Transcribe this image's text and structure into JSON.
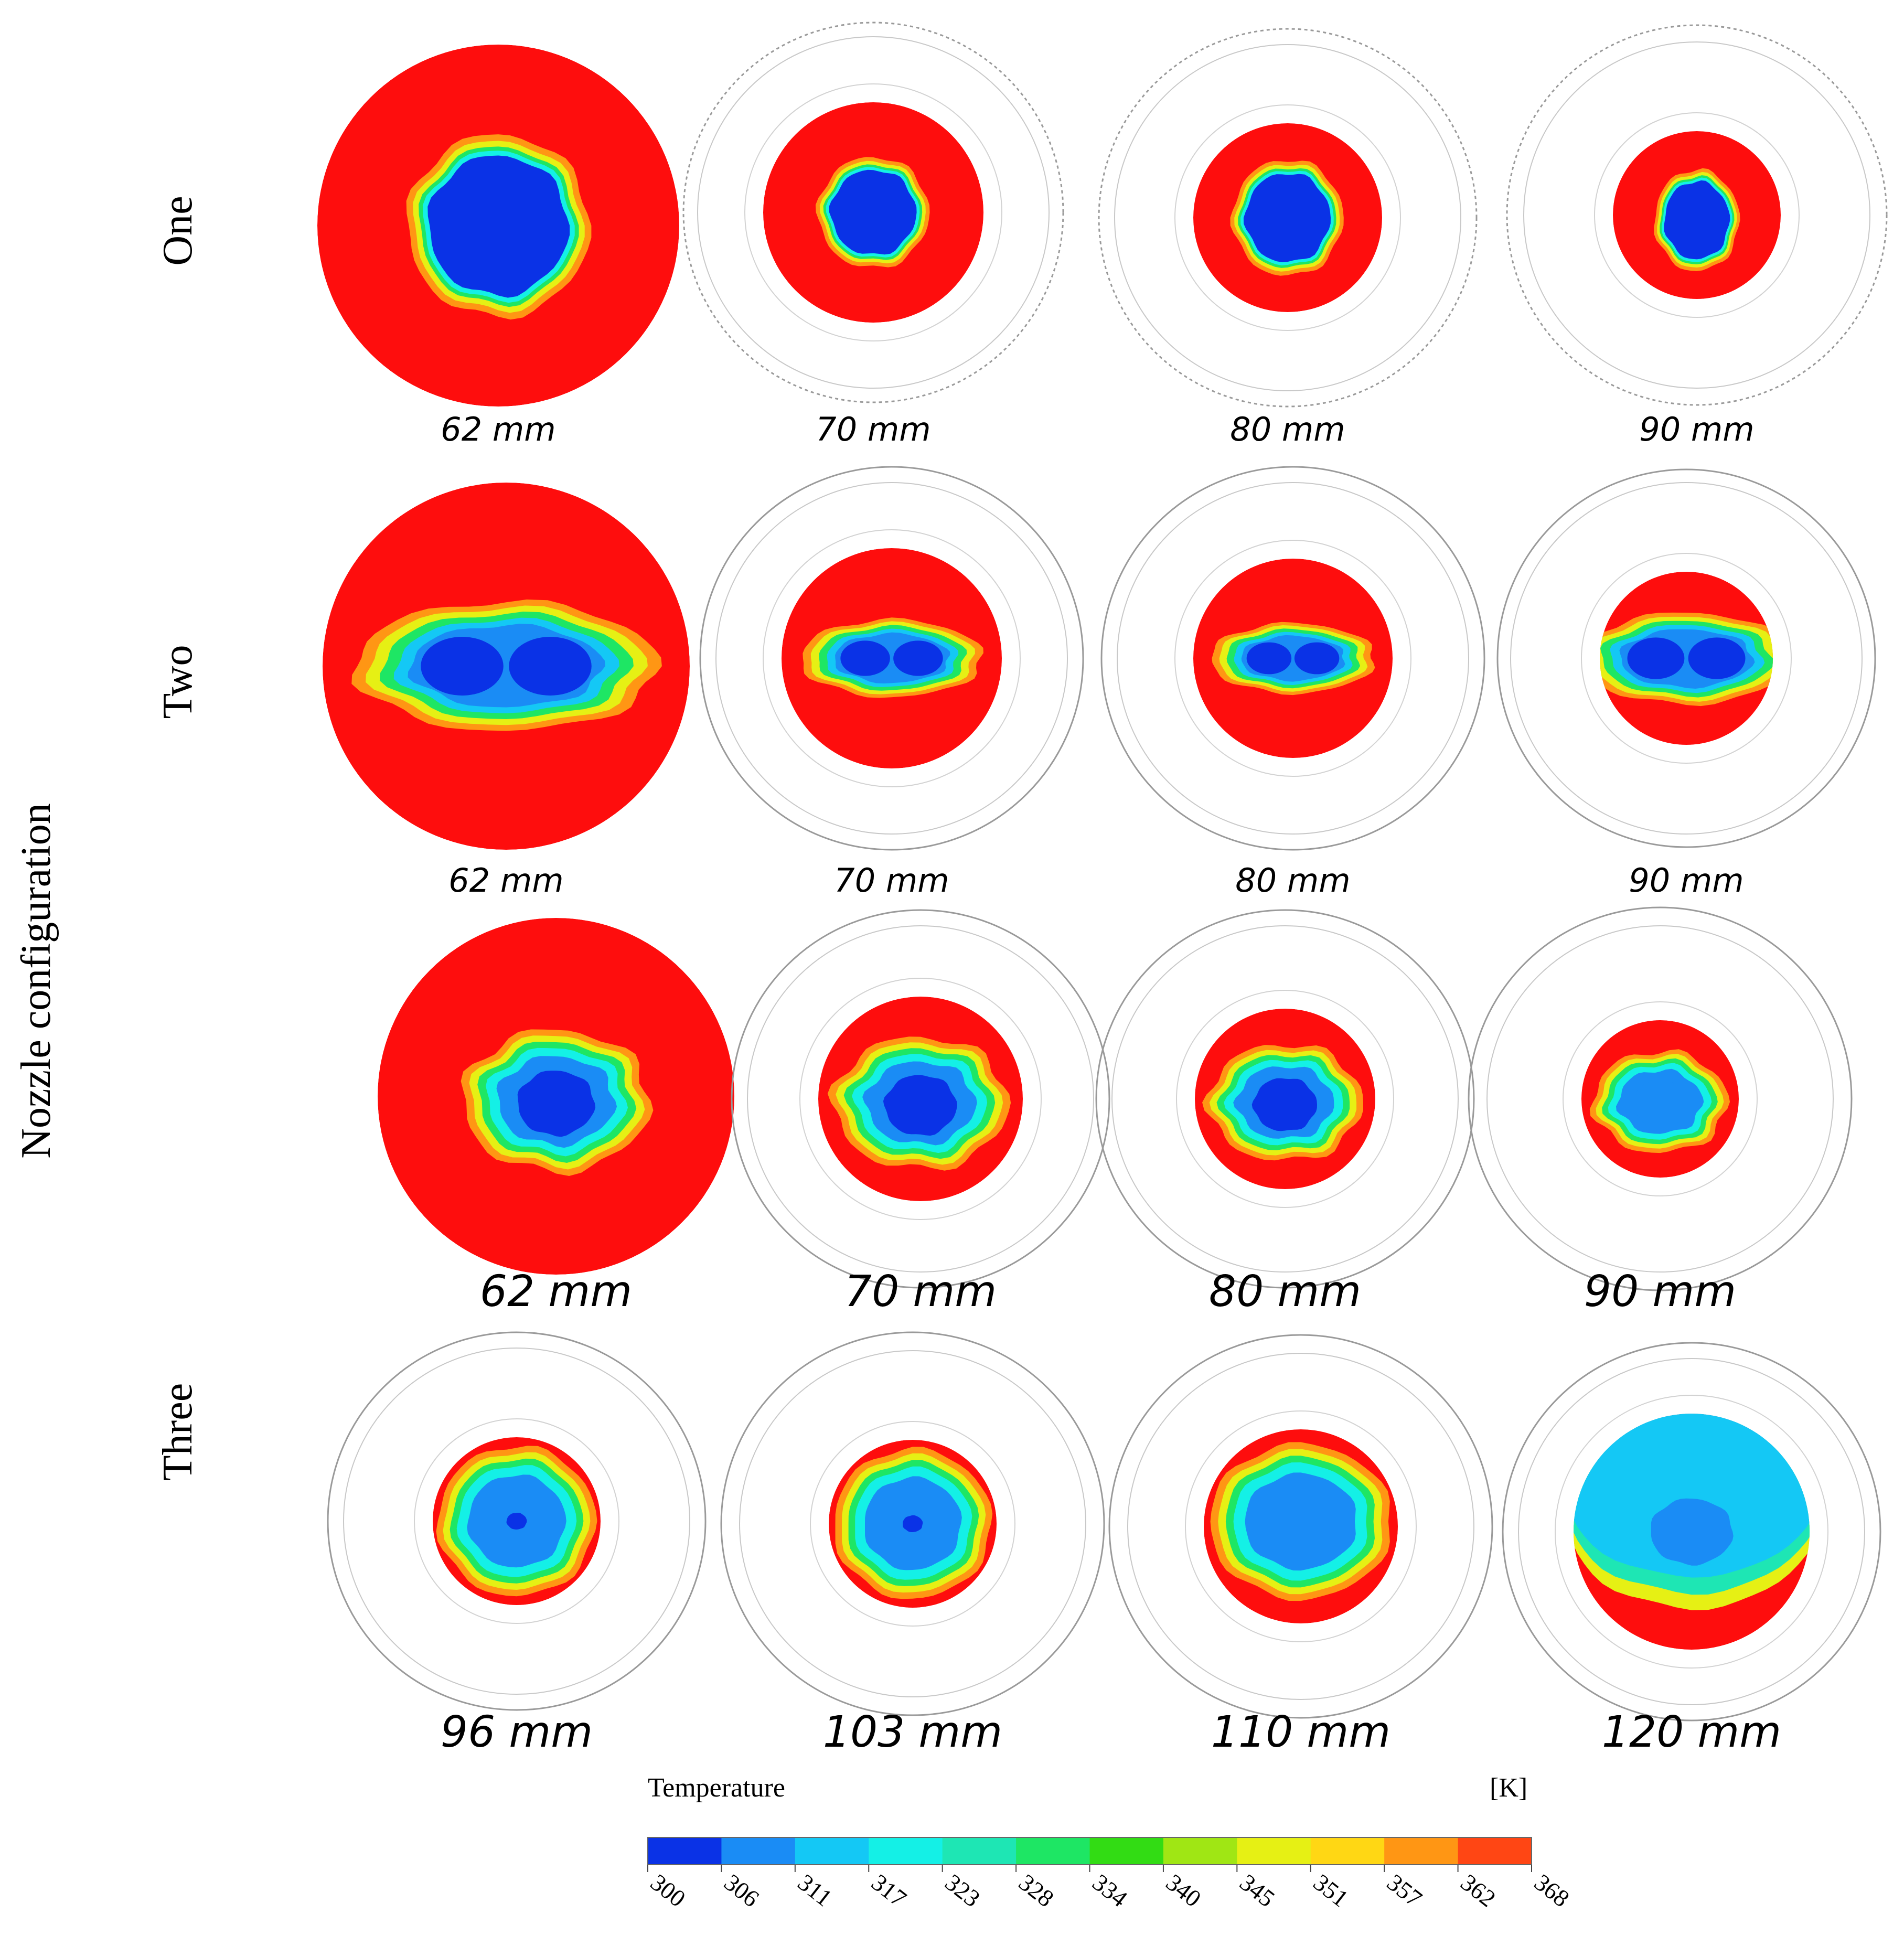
{
  "axis_title": "Nozzle configuration",
  "rows": [
    {
      "label": "One",
      "panels": [
        {
          "label": "62 mm",
          "pattern": "center-blob"
        },
        {
          "label": "70 mm",
          "pattern": "center-blob"
        },
        {
          "label": "80 mm",
          "pattern": "center-square"
        },
        {
          "label": "90 mm",
          "pattern": "center-bottle"
        }
      ]
    },
    {
      "label": "Two",
      "panels": [
        {
          "label": "62 mm",
          "pattern": "horizontal-band"
        },
        {
          "label": "70 mm",
          "pattern": "horizontal-band"
        },
        {
          "label": "80 mm",
          "pattern": "horizontal-band"
        },
        {
          "label": "90 mm",
          "pattern": "horizontal-band-wide"
        }
      ]
    },
    {
      "label": "",
      "panels": [
        {
          "label": "62 mm",
          "pattern": "tri-lobe"
        },
        {
          "label": "70 mm",
          "pattern": "tri-lobe"
        },
        {
          "label": "80 mm",
          "pattern": "tri-lobe"
        },
        {
          "label": "90 mm",
          "pattern": "tri-lobe-cool"
        }
      ]
    },
    {
      "label": "Three",
      "panels": [
        {
          "label": "96 mm",
          "pattern": "cool-disc"
        },
        {
          "label": "103 mm",
          "pattern": "cool-disc"
        },
        {
          "label": "110 mm",
          "pattern": "cool-disc-arch"
        },
        {
          "label": "120 mm",
          "pattern": "cool-top"
        }
      ]
    }
  ],
  "legend": {
    "title": "Temperature",
    "unit": "[K]",
    "ticks": [
      "300",
      "306",
      "311",
      "317",
      "323",
      "328",
      "334",
      "340",
      "345",
      "351",
      "357",
      "362",
      "368"
    ],
    "colors": [
      "#0a32e6",
      "#1a8cf5",
      "#14c8f5",
      "#14f0e6",
      "#1ee6b4",
      "#1ee664",
      "#32dc14",
      "#a0e614",
      "#e6f014",
      "#ffd714",
      "#ff9614",
      "#ff4614"
    ]
  },
  "colors": {
    "hot": "#fe0d0d",
    "cold": "#0a32e6",
    "outline": "#9a9a9a"
  }
}
